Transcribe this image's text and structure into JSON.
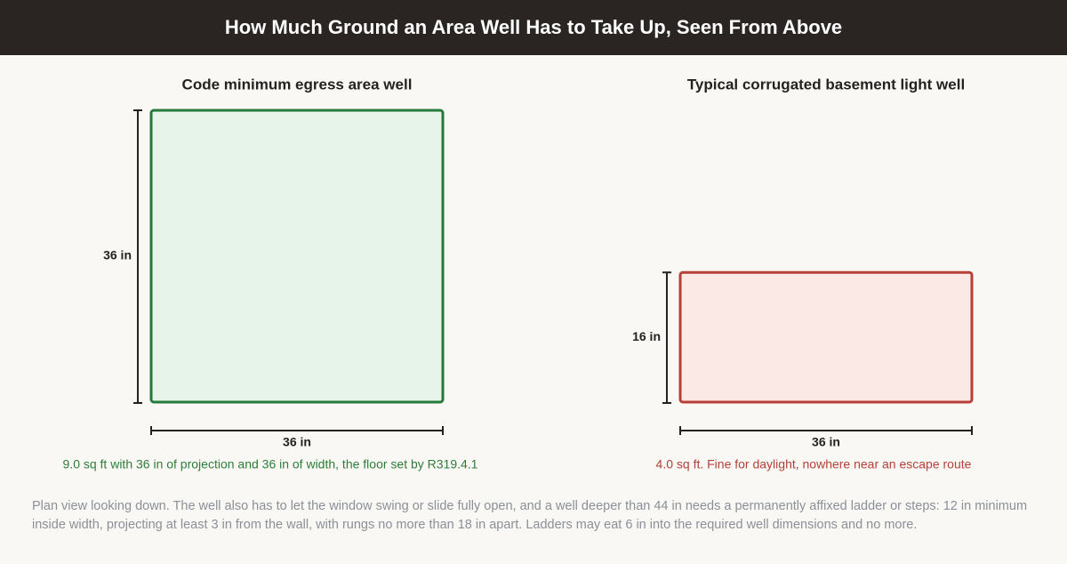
{
  "header": {
    "title": "How Much Ground an Area Well Has to Take Up, Seen From Above"
  },
  "panels": [
    {
      "title": "Code minimum egress area well",
      "width": {
        "value": 36,
        "label": "36 in"
      },
      "depth": {
        "value": 36,
        "label": "36 in"
      },
      "caption": "9.0 sq ft with 36 in of projection and 36 in of width, the floor set by R319.4.1"
    },
    {
      "title": "Typical corrugated basement light well",
      "width": {
        "value": 36,
        "label": "36 in"
      },
      "depth": {
        "value": 16,
        "label": "16 in"
      },
      "caption": "4.0 sq ft. Fine for daylight, nowhere near an escape route"
    }
  ],
  "footnote": "Plan view looking down. The well also has to let the window swing or slide fully open, and a well deeper than 44 in needs a permanently affixed ladder or steps: 12 in minimum inside width, projecting at least 3 in from the wall, with rungs no more than 18 in apart. Ladders may eat 6 in into the required well dimensions and no more."
}
